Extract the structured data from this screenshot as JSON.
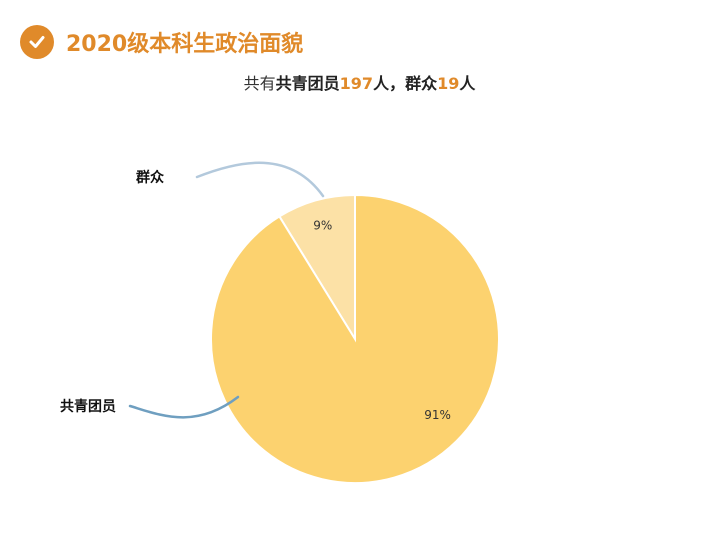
{
  "header": {
    "title": "2020级本科生政治面貌",
    "accent_color": "#e08a2a",
    "icon": "check-circle-icon"
  },
  "subtitle": {
    "prefix": "共有",
    "item1_label": "共青团员",
    "item1_count": "197",
    "unit1": "人，",
    "item2_label": "群众",
    "item2_count": "19",
    "unit2": "人"
  },
  "chart_data": {
    "type": "pie",
    "title": "",
    "slices": [
      {
        "label": "群众",
        "value": 19,
        "percent_label": "9%",
        "color": "#fce1a6",
        "leader_color": "#b3c9dc"
      },
      {
        "label": "共青团员",
        "value": 197,
        "percent_label": "91%",
        "color": "#fcd26f",
        "leader_color": "#6f9fc0"
      }
    ]
  }
}
